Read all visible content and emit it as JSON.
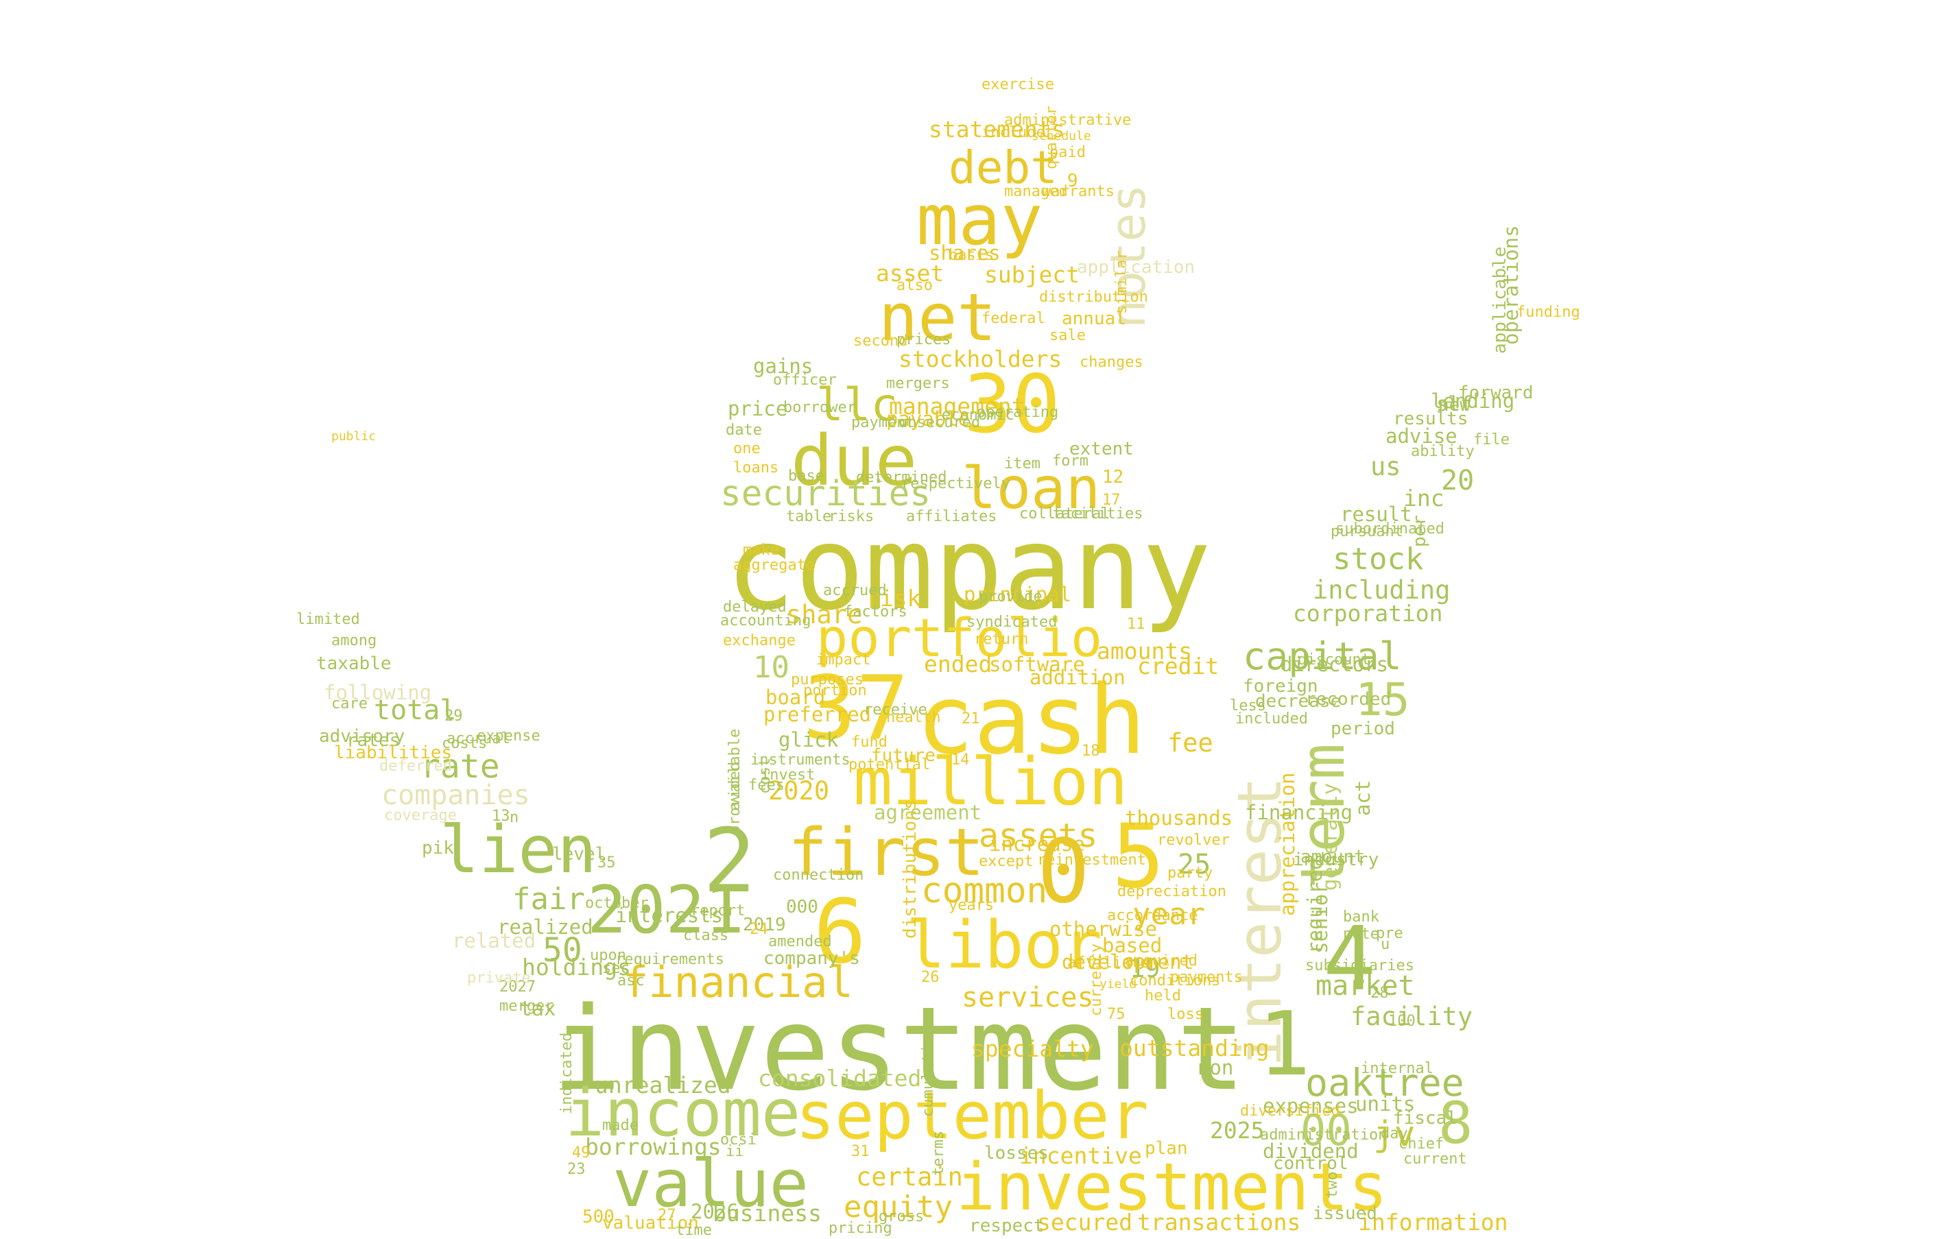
{
  "palette": {
    "green": "#a8c45a",
    "olive": "#c7c93a",
    "yellow": "#f2d62e",
    "gold": "#e8c82a",
    "pale": "#e6e3b4",
    "light": "#dfe3a4",
    "lime": "#b9d06a"
  },
  "words": [
    {
      "text": "company",
      "color": "olive"
    },
    {
      "text": "investment",
      "color": "green"
    },
    {
      "text": "cash",
      "color": "yellow"
    },
    {
      "text": "investments",
      "color": "yellow"
    },
    {
      "text": "september",
      "color": "yellow"
    },
    {
      "text": "value",
      "color": "green"
    },
    {
      "text": "income",
      "color": "lime"
    },
    {
      "text": "million",
      "color": "yellow"
    },
    {
      "text": "libor",
      "color": "yellow"
    },
    {
      "text": "portfolio",
      "color": "yellow"
    },
    {
      "text": "may",
      "color": "gold"
    },
    {
      "text": "net",
      "color": "gold"
    },
    {
      "text": "due",
      "color": "olive"
    },
    {
      "text": "loan",
      "color": "gold"
    },
    {
      "text": "30",
      "color": "yellow"
    },
    {
      "text": "lien",
      "color": "green"
    },
    {
      "text": "2021",
      "color": "green"
    },
    {
      "text": "first",
      "color": "gold"
    },
    {
      "text": "interest",
      "color": "pale"
    },
    {
      "text": "term",
      "color": "lime"
    },
    {
      "text": "notes",
      "color": "pale"
    },
    {
      "text": "37",
      "color": "yellow"
    },
    {
      "text": "2",
      "color": "green"
    },
    {
      "text": "6",
      "color": "yellow"
    },
    {
      "text": "0",
      "color": "gold"
    },
    {
      "text": "5",
      "color": "yellow"
    },
    {
      "text": "4",
      "color": "green"
    },
    {
      "text": "1",
      "color": "green"
    },
    {
      "text": "8",
      "color": "lime"
    },
    {
      "text": "00",
      "color": "lime"
    },
    {
      "text": "jv",
      "color": "olive"
    },
    {
      "text": "financial",
      "color": "gold"
    },
    {
      "text": "securities",
      "color": "lime"
    },
    {
      "text": "llc",
      "color": "olive"
    },
    {
      "text": "debt",
      "color": "gold"
    },
    {
      "text": "assets",
      "color": "gold"
    },
    {
      "text": "common",
      "color": "gold"
    },
    {
      "text": "capital",
      "color": "green"
    },
    {
      "text": "oaktree",
      "color": "green"
    },
    {
      "text": "equity",
      "color": "gold"
    },
    {
      "text": "certain",
      "color": "gold"
    },
    {
      "text": "rate",
      "color": "green"
    },
    {
      "text": "companies",
      "color": "pale"
    },
    {
      "text": "fair",
      "color": "green"
    },
    {
      "text": "year",
      "color": "gold"
    },
    {
      "text": "stock",
      "color": "green"
    },
    {
      "text": "including",
      "color": "green"
    },
    {
      "text": "services",
      "color": "gold"
    },
    {
      "text": "statements",
      "color": "gold"
    },
    {
      "text": "market",
      "color": "green"
    },
    {
      "text": "facility",
      "color": "green"
    },
    {
      "text": "consolidated",
      "color": "lime"
    },
    {
      "text": "secured",
      "color": "gold"
    },
    {
      "text": "transactions",
      "color": "gold"
    },
    {
      "text": "information",
      "color": "gold"
    },
    {
      "text": "business",
      "color": "green"
    },
    {
      "text": "incentive",
      "color": "gold"
    },
    {
      "text": "outstanding",
      "color": "gold"
    },
    {
      "text": "specialty",
      "color": "gold"
    },
    {
      "text": "unrealized",
      "color": "green"
    },
    {
      "text": "borrowings",
      "color": "green"
    },
    {
      "text": "holdings",
      "color": "green"
    },
    {
      "text": "total",
      "color": "green"
    },
    {
      "text": "15",
      "color": "lime"
    },
    {
      "text": "20",
      "color": "green"
    },
    {
      "text": "10",
      "color": "lime"
    },
    {
      "text": "50",
      "color": "green"
    },
    {
      "text": "25",
      "color": "green"
    },
    {
      "text": "19",
      "color": "green"
    },
    {
      "text": "2020",
      "color": "gold"
    },
    {
      "text": "2025",
      "color": "green"
    },
    {
      "text": "2026",
      "color": "green"
    },
    {
      "text": "us",
      "color": "green"
    },
    {
      "text": "inc",
      "color": "green"
    },
    {
      "text": "slf",
      "color": "green"
    },
    {
      "text": "lending",
      "color": "green"
    },
    {
      "text": "advise",
      "color": "green"
    },
    {
      "text": "result",
      "color": "green"
    },
    {
      "text": "corporation",
      "color": "green"
    },
    {
      "text": "directors",
      "color": "green"
    },
    {
      "text": "fee",
      "color": "gold"
    },
    {
      "text": "credit",
      "color": "gold"
    },
    {
      "text": "amounts",
      "color": "gold"
    },
    {
      "text": "share",
      "color": "gold"
    },
    {
      "text": "risk",
      "color": "gold"
    },
    {
      "text": "stockholders",
      "color": "gold"
    },
    {
      "text": "management",
      "color": "gold"
    },
    {
      "text": "subject",
      "color": "gold"
    },
    {
      "text": "asset",
      "color": "gold"
    },
    {
      "text": "shares",
      "color": "gold"
    },
    {
      "text": "gains",
      "color": "green"
    },
    {
      "text": "price",
      "color": "green"
    },
    {
      "text": "payable",
      "color": "gold"
    },
    {
      "text": "principal",
      "color": "gold"
    },
    {
      "text": "ended",
      "color": "gold"
    },
    {
      "text": "software",
      "color": "gold"
    },
    {
      "text": "addition",
      "color": "gold"
    },
    {
      "text": "board",
      "color": "gold"
    },
    {
      "text": "preferred",
      "color": "gold"
    },
    {
      "text": "glick",
      "color": "green"
    },
    {
      "text": "future",
      "color": "gold"
    },
    {
      "text": "interests",
      "color": "green"
    },
    {
      "text": "realized",
      "color": "green"
    },
    {
      "text": "related",
      "color": "pale"
    },
    {
      "text": "level",
      "color": "green"
    },
    {
      "text": "pik",
      "color": "green"
    },
    {
      "text": "tax",
      "color": "green"
    },
    {
      "text": "taxable",
      "color": "green"
    },
    {
      "text": "following",
      "color": "pale"
    },
    {
      "text": "advisory",
      "color": "green"
    },
    {
      "text": "rates",
      "color": "green"
    },
    {
      "text": "liabilities",
      "color": "gold"
    },
    {
      "text": "otherwise",
      "color": "gold"
    },
    {
      "text": "based",
      "color": "gold"
    },
    {
      "text": "development",
      "color": "gold"
    },
    {
      "text": "increase",
      "color": "gold"
    },
    {
      "text": "thousands",
      "color": "gold"
    },
    {
      "text": "agreement",
      "color": "lime"
    },
    {
      "text": "appreciation",
      "color": "gold"
    },
    {
      "text": "financing",
      "color": "green"
    },
    {
      "text": "required",
      "color": "green"
    },
    {
      "text": "senior",
      "color": "green"
    },
    {
      "text": "generally",
      "color": "lime"
    },
    {
      "text": "act",
      "color": "green"
    },
    {
      "text": "industry",
      "color": "green"
    },
    {
      "text": "amount",
      "color": "green"
    },
    {
      "text": "foreign",
      "color": "green"
    },
    {
      "text": "decrease",
      "color": "green"
    },
    {
      "text": "recorded",
      "color": "green"
    },
    {
      "text": "period",
      "color": "green"
    },
    {
      "text": "units",
      "color": "green"
    },
    {
      "text": "fiscal",
      "color": "green"
    },
    {
      "text": "expenses",
      "color": "green"
    },
    {
      "text": "dividend",
      "color": "green"
    },
    {
      "text": "control",
      "color": "green"
    },
    {
      "text": "non",
      "color": "green"
    },
    {
      "text": "issued",
      "color": "green"
    },
    {
      "text": "valuation",
      "color": "gold"
    },
    {
      "text": "respect",
      "color": "green"
    },
    {
      "text": "plan",
      "color": "gold"
    },
    {
      "text": "losses",
      "color": "green"
    },
    {
      "text": "operations",
      "color": "green"
    },
    {
      "text": "applicable",
      "color": "green"
    },
    {
      "text": "results",
      "color": "green"
    },
    {
      "text": "forward",
      "color": "green"
    },
    {
      "text": "new",
      "color": "green"
    },
    {
      "text": "file",
      "color": "green"
    },
    {
      "text": "ability",
      "color": "green"
    },
    {
      "text": "pursuant",
      "color": "green"
    },
    {
      "text": "subordinated",
      "color": "green"
    },
    {
      "text": "per",
      "color": "green"
    },
    {
      "text": "discount",
      "color": "green"
    },
    {
      "text": "less",
      "color": "green"
    },
    {
      "text": "included",
      "color": "green"
    },
    {
      "text": "bank",
      "color": "green"
    },
    {
      "text": "note",
      "color": "green"
    },
    {
      "text": "pre",
      "color": "green"
    },
    {
      "text": "u",
      "color": "green"
    },
    {
      "text": "subsidiaries",
      "color": "green"
    },
    {
      "text": "28",
      "color": "green"
    },
    {
      "text": "100",
      "color": "green"
    },
    {
      "text": "current",
      "color": "green"
    },
    {
      "text": "chief",
      "color": "green"
    },
    {
      "text": "day",
      "color": "green"
    },
    {
      "text": "internal",
      "color": "green"
    },
    {
      "text": "two",
      "color": "green"
    },
    {
      "text": "depreciation",
      "color": "gold"
    },
    {
      "text": "accordance",
      "color": "gold"
    },
    {
      "text": "acquired",
      "color": "gold"
    },
    {
      "text": "conditions",
      "color": "gold"
    },
    {
      "text": "held",
      "color": "gold"
    },
    {
      "text": "loss",
      "color": "gold"
    },
    {
      "text": "payments",
      "color": "gold"
    },
    {
      "text": "revolver",
      "color": "gold"
    },
    {
      "text": "party",
      "color": "gold"
    },
    {
      "text": "2019",
      "color": "green"
    },
    {
      "text": "000",
      "color": "green"
    },
    {
      "text": "connection",
      "color": "green"
    },
    {
      "text": "years",
      "color": "gold"
    },
    {
      "text": "except",
      "color": "gold"
    },
    {
      "text": "distributions",
      "color": "gold"
    },
    {
      "text": "currency",
      "color": "gold"
    },
    {
      "text": "yield",
      "color": "gold"
    },
    {
      "text": "affiliate",
      "color": "gold"
    },
    {
      "text": "amended",
      "color": "green"
    },
    {
      "text": "requirements",
      "color": "green"
    },
    {
      "text": "company's",
      "color": "green"
    },
    {
      "text": "2027",
      "color": "green"
    },
    {
      "text": "merger",
      "color": "green"
    },
    {
      "text": "private",
      "color": "pale"
    },
    {
      "text": "upon",
      "color": "green"
    },
    {
      "text": "coverage",
      "color": "pale"
    },
    {
      "text": "costs",
      "color": "green"
    },
    {
      "text": "accrual",
      "color": "green"
    },
    {
      "text": "expense",
      "color": "green"
    },
    {
      "text": "deferred",
      "color": "pale"
    },
    {
      "text": "among",
      "color": "green"
    },
    {
      "text": "limited",
      "color": "green"
    },
    {
      "text": "care",
      "color": "green"
    },
    {
      "text": "29",
      "color": "green"
    },
    {
      "text": "13",
      "color": "green"
    },
    {
      "text": "n",
      "color": "green"
    },
    {
      "text": "35",
      "color": "green"
    },
    {
      "text": "october",
      "color": "green"
    },
    {
      "text": "sec",
      "color": "green"
    },
    {
      "text": "asc",
      "color": "green"
    },
    {
      "text": "report",
      "color": "green"
    },
    {
      "text": "class",
      "color": "green"
    },
    {
      "text": "provided",
      "color": "green"
    },
    {
      "text": "cost",
      "color": "green"
    },
    {
      "text": "fees",
      "color": "green"
    },
    {
      "text": "available",
      "color": "green"
    },
    {
      "text": "instruments",
      "color": "green"
    },
    {
      "text": "invest",
      "color": "green"
    },
    {
      "text": "receive",
      "color": "green"
    },
    {
      "text": "health",
      "color": "gold"
    },
    {
      "text": "fund",
      "color": "gold"
    },
    {
      "text": "potential",
      "color": "gold"
    },
    {
      "text": "purposes",
      "color": "gold"
    },
    {
      "text": "portion",
      "color": "gold"
    },
    {
      "text": "impact",
      "color": "gold"
    },
    {
      "text": "exchange",
      "color": "gold"
    },
    {
      "text": "accounting",
      "color": "green"
    },
    {
      "text": "delayed",
      "color": "green"
    },
    {
      "text": "accrued",
      "color": "green"
    },
    {
      "text": "factors",
      "color": "green"
    },
    {
      "text": "syndicated",
      "color": "green"
    },
    {
      "text": "provide",
      "color": "green"
    },
    {
      "text": "return",
      "color": "gold"
    },
    {
      "text": "make",
      "color": "gold"
    },
    {
      "text": "aggregate",
      "color": "gold"
    },
    {
      "text": "table",
      "color": "green"
    },
    {
      "text": "risks",
      "color": "green"
    },
    {
      "text": "affiliates",
      "color": "green"
    },
    {
      "text": "collateral",
      "color": "green"
    },
    {
      "text": "facilities",
      "color": "green"
    },
    {
      "text": "base",
      "color": "green"
    },
    {
      "text": "determined",
      "color": "green"
    },
    {
      "text": "respectively",
      "color": "green"
    },
    {
      "text": "item",
      "color": "green"
    },
    {
      "text": "form",
      "color": "green"
    },
    {
      "text": "loans",
      "color": "gold"
    },
    {
      "text": "one",
      "color": "gold"
    },
    {
      "text": "date",
      "color": "green"
    },
    {
      "text": "borrower",
      "color": "green"
    },
    {
      "text": "payment",
      "color": "green"
    },
    {
      "text": "unsecured",
      "color": "green"
    },
    {
      "text": "economic",
      "color": "green"
    },
    {
      "text": "operating",
      "color": "green"
    },
    {
      "text": "extent",
      "color": "green"
    },
    {
      "text": "officer",
      "color": "green"
    },
    {
      "text": "mergers",
      "color": "green"
    },
    {
      "text": "second",
      "color": "gold"
    },
    {
      "text": "prices",
      "color": "green"
    },
    {
      "text": "sale",
      "color": "gold"
    },
    {
      "text": "federal",
      "color": "gold"
    },
    {
      "text": "distribution",
      "color": "gold"
    },
    {
      "text": "also",
      "color": "gold"
    },
    {
      "text": "basis",
      "color": "gold"
    },
    {
      "text": "include",
      "color": "gold"
    },
    {
      "text": "administrative",
      "color": "gold"
    },
    {
      "text": "exercise",
      "color": "gold"
    },
    {
      "text": "paid",
      "color": "gold"
    },
    {
      "text": "warrants",
      "color": "gold"
    },
    {
      "text": "managed",
      "color": "gold"
    },
    {
      "text": "quarter",
      "color": "gold"
    },
    {
      "text": "similar",
      "color": "gold"
    },
    {
      "text": "reinvestment",
      "color": "gold"
    },
    {
      "text": "changes",
      "color": "gold"
    },
    {
      "text": "application",
      "color": "pale"
    },
    {
      "text": "annual",
      "color": "gold"
    },
    {
      "text": "9",
      "color": "gold"
    },
    {
      "text": "12",
      "color": "gold"
    },
    {
      "text": "17",
      "color": "gold"
    },
    {
      "text": "11",
      "color": "gold"
    },
    {
      "text": "18",
      "color": "gold"
    },
    {
      "text": "14",
      "color": "gold"
    },
    {
      "text": "21",
      "color": "gold"
    },
    {
      "text": "26",
      "color": "gold"
    },
    {
      "text": "75",
      "color": "gold"
    },
    {
      "text": "31",
      "color": "gold"
    },
    {
      "text": "24",
      "color": "gold"
    },
    {
      "text": "500",
      "color": "gold"
    },
    {
      "text": "27",
      "color": "gold"
    },
    {
      "text": "23",
      "color": "green"
    },
    {
      "text": "49",
      "color": "gold"
    },
    {
      "text": "ocsi",
      "color": "green"
    },
    {
      "text": "ii",
      "color": "green"
    },
    {
      "text": "made",
      "color": "green"
    },
    {
      "text": "indicated",
      "color": "green"
    },
    {
      "text": "pricing",
      "color": "green"
    },
    {
      "text": "time",
      "color": "green"
    },
    {
      "text": "gross",
      "color": "green"
    },
    {
      "text": "terms",
      "color": "green"
    },
    {
      "text": "cumulative",
      "color": "green"
    },
    {
      "text": "diversified",
      "color": "gold"
    },
    {
      "text": "administration",
      "color": "green"
    },
    {
      "text": "public",
      "color": "gold"
    },
    {
      "text": "funding",
      "color": "gold"
    },
    {
      "text": "schedule",
      "color": "gold"
    },
    {
      "text": "indebtedness",
      "color": "green"
    },
    {
      "text": "effect",
      "color": "green"
    },
    {
      "text": "e",
      "color": "green"
    },
    {
      "text": "k",
      "color": "green"
    },
    {
      "text": "b",
      "color": "gold"
    }
  ]
}
